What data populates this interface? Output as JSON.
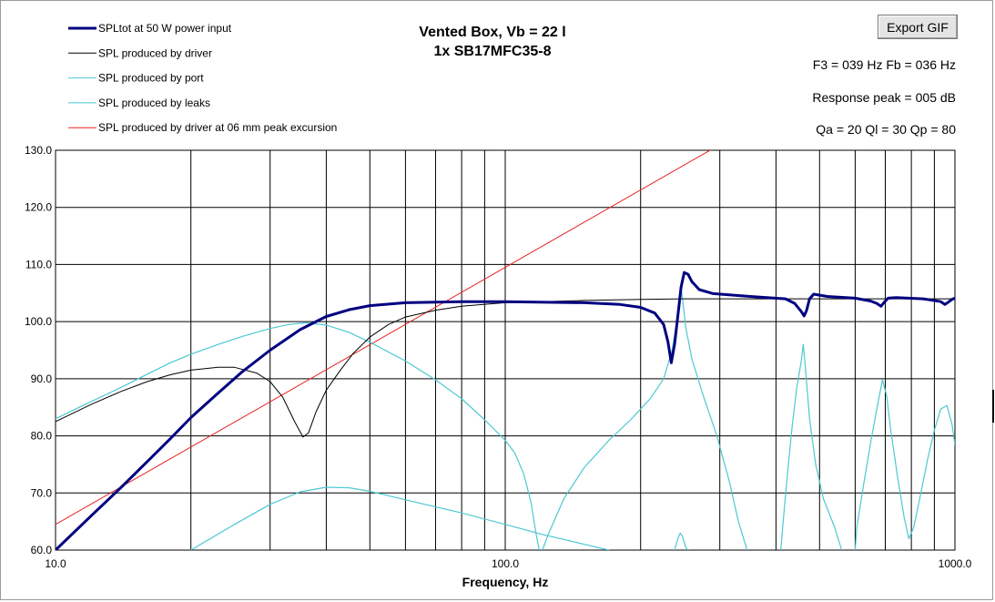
{
  "export_button": {
    "label": "Export GIF"
  },
  "info": {
    "line1": "F3 = 039 Hz  Fb = 036 Hz",
    "line2": "Response peak = 005 dB",
    "line3": "Qa = 20  Ql = 30  Qp = 80"
  },
  "colors": {
    "total": "#000080",
    "driver": "#000000",
    "port": "#4cc8d2",
    "leaks": "#4cc8d2",
    "excursion": "#e8201e",
    "grid": "#000000"
  },
  "chart_data": {
    "type": "line",
    "title": "Vented Box, Vb = 22 l",
    "subtitle": "1x SB17MFC35-8",
    "xlabel": "Frequency,  Hz",
    "ylabel": "",
    "xscale": "log",
    "xlim": [
      10,
      1000
    ],
    "ylim": [
      60,
      130
    ],
    "grid": true,
    "legend_position": "top-left",
    "x_ticks": [
      {
        "value": 10,
        "label": "10.0"
      },
      {
        "value": 100,
        "label": "100.0"
      },
      {
        "value": 1000,
        "label": "1000.0"
      }
    ],
    "y_ticks": [
      {
        "value": 60,
        "label": "60.0"
      },
      {
        "value": 70,
        "label": "70.0"
      },
      {
        "value": 80,
        "label": "80.0"
      },
      {
        "value": 90,
        "label": "90.0"
      },
      {
        "value": 100,
        "label": "100.0"
      },
      {
        "value": 110,
        "label": "110.0"
      },
      {
        "value": 120,
        "label": "120.0"
      },
      {
        "value": 130,
        "label": "130.0"
      }
    ],
    "series": [
      {
        "name": "SPLtot at 50 W power input",
        "key": "total",
        "points": [
          [
            10,
            60
          ],
          [
            12,
            66
          ],
          [
            14,
            71
          ],
          [
            16,
            75.5
          ],
          [
            18,
            79.5
          ],
          [
            20,
            83.2
          ],
          [
            23,
            87.5
          ],
          [
            26,
            91.2
          ],
          [
            30,
            95
          ],
          [
            35,
            98.6
          ],
          [
            40,
            100.9
          ],
          [
            45,
            102.1
          ],
          [
            50,
            102.8
          ],
          [
            60,
            103.3
          ],
          [
            80,
            103.5
          ],
          [
            100,
            103.5
          ],
          [
            150,
            103.3
          ],
          [
            180,
            103
          ],
          [
            200,
            102.5
          ],
          [
            215,
            101.5
          ],
          [
            225,
            99.5
          ],
          [
            230,
            96.5
          ],
          [
            234,
            92.8
          ],
          [
            238,
            96
          ],
          [
            242,
            101
          ],
          [
            246,
            106
          ],
          [
            250,
            108.6
          ],
          [
            255,
            108.3
          ],
          [
            260,
            107
          ],
          [
            270,
            105.6
          ],
          [
            290,
            104.9
          ],
          [
            350,
            104.4
          ],
          [
            420,
            104
          ],
          [
            440,
            103.2
          ],
          [
            455,
            101.8
          ],
          [
            462,
            101
          ],
          [
            468,
            102
          ],
          [
            475,
            104
          ],
          [
            485,
            104.8
          ],
          [
            520,
            104.4
          ],
          [
            600,
            104.1
          ],
          [
            650,
            103.6
          ],
          [
            670,
            103.2
          ],
          [
            685,
            102.7
          ],
          [
            695,
            103.3
          ],
          [
            710,
            104.1
          ],
          [
            740,
            104.2
          ],
          [
            850,
            104
          ],
          [
            930,
            103.5
          ],
          [
            950,
            103
          ],
          [
            970,
            103.5
          ],
          [
            985,
            103.9
          ],
          [
            1000,
            104.1
          ]
        ]
      },
      {
        "name": "SPL produced by driver",
        "key": "driver",
        "points": [
          [
            10,
            82.5
          ],
          [
            12,
            85.5
          ],
          [
            14,
            87.8
          ],
          [
            16,
            89.5
          ],
          [
            18,
            90.7
          ],
          [
            20,
            91.5
          ],
          [
            23,
            92
          ],
          [
            25,
            92
          ],
          [
            28,
            91
          ],
          [
            30,
            89.5
          ],
          [
            32,
            86.8
          ],
          [
            34,
            82.5
          ],
          [
            35.5,
            79.8
          ],
          [
            36.5,
            80.5
          ],
          [
            38,
            84.3
          ],
          [
            40,
            88
          ],
          [
            43,
            91.5
          ],
          [
            46,
            94.5
          ],
          [
            50,
            97.3
          ],
          [
            55,
            99.5
          ],
          [
            60,
            100.8
          ],
          [
            70,
            102
          ],
          [
            80,
            102.7
          ],
          [
            100,
            103.3
          ],
          [
            150,
            103.7
          ],
          [
            200,
            103.9
          ],
          [
            250,
            104
          ],
          [
            300,
            104
          ],
          [
            500,
            104
          ],
          [
            1000,
            104
          ]
        ]
      },
      {
        "name": "SPL produced by port",
        "key": "port",
        "points": [
          [
            10,
            83
          ],
          [
            12,
            86
          ],
          [
            14,
            88.5
          ],
          [
            16,
            90.8
          ],
          [
            18,
            92.8
          ],
          [
            20,
            94.3
          ],
          [
            23,
            96
          ],
          [
            26,
            97.4
          ],
          [
            30,
            98.8
          ],
          [
            33,
            99.5
          ],
          [
            36,
            99.8
          ],
          [
            40,
            99.4
          ],
          [
            45,
            98.1
          ],
          [
            50,
            96.4
          ],
          [
            60,
            93.1
          ],
          [
            70,
            89.8
          ],
          [
            80,
            86.5
          ],
          [
            90,
            82.8
          ],
          [
            100,
            79.2
          ],
          [
            105,
            77
          ],
          [
            110,
            73.3
          ],
          [
            114,
            68.5
          ],
          [
            117,
            63
          ],
          [
            119,
            60
          ],
          [
            null,
            null
          ],
          [
            121,
            60
          ],
          [
            125,
            63
          ],
          [
            135,
            69
          ],
          [
            150,
            74.5
          ],
          [
            170,
            79.2
          ],
          [
            190,
            82.8
          ],
          [
            210,
            86.5
          ],
          [
            225,
            90
          ],
          [
            235,
            95
          ],
          [
            242,
            101
          ],
          [
            246,
            106
          ],
          [
            248,
            103.8
          ],
          [
            252,
            99
          ],
          [
            260,
            93.5
          ],
          [
            275,
            87.3
          ],
          [
            295,
            80.2
          ],
          [
            315,
            72
          ],
          [
            330,
            65
          ],
          [
            345,
            60
          ],
          [
            null,
            null
          ],
          [
            410,
            60
          ],
          [
            415,
            65
          ],
          [
            425,
            74
          ],
          [
            435,
            82
          ],
          [
            445,
            88.5
          ],
          [
            455,
            93
          ],
          [
            460,
            96
          ],
          [
            465,
            92
          ],
          [
            475,
            83
          ],
          [
            490,
            75
          ],
          [
            510,
            69
          ],
          [
            540,
            64
          ],
          [
            560,
            60
          ],
          [
            null,
            null
          ],
          [
            600,
            60
          ],
          [
            605,
            64
          ],
          [
            625,
            71
          ],
          [
            650,
            79
          ],
          [
            675,
            86
          ],
          [
            690,
            89.8
          ],
          [
            705,
            87
          ],
          [
            720,
            81
          ],
          [
            745,
            73
          ],
          [
            770,
            66
          ],
          [
            790,
            62
          ],
          [
            810,
            64
          ],
          [
            840,
            70
          ],
          [
            870,
            76
          ],
          [
            900,
            81
          ],
          [
            930,
            84.7
          ],
          [
            960,
            85.3
          ],
          [
            985,
            82
          ],
          [
            1000,
            78.5
          ]
        ]
      },
      {
        "name": "SPL produced by leaks",
        "key": "leaks",
        "points": [
          [
            20,
            60
          ],
          [
            25,
            64.5
          ],
          [
            30,
            68
          ],
          [
            35,
            70.2
          ],
          [
            40,
            71
          ],
          [
            45,
            70.9
          ],
          [
            50,
            70.3
          ],
          [
            60,
            68.8
          ],
          [
            80,
            66.5
          ],
          [
            100,
            64.5
          ],
          [
            120,
            62.8
          ],
          [
            150,
            61
          ],
          [
            170,
            60
          ],
          [
            null,
            null
          ],
          [
            238,
            60
          ],
          [
            242,
            62
          ],
          [
            245,
            63
          ],
          [
            248,
            62.3
          ],
          [
            252,
            60.5
          ],
          [
            255,
            60
          ]
        ]
      },
      {
        "name": "SPL produced by driver at 06 mm peak excursion",
        "key": "excursion",
        "points": [
          [
            10,
            64.5
          ],
          [
            1000,
            154.5
          ]
        ]
      }
    ]
  }
}
